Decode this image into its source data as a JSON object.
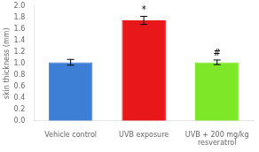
{
  "chart_data": {
    "type": "bar",
    "categories": [
      "Vehicle control",
      "UVB exposure",
      "UVB + 200 mg/kg\nresveratrol"
    ],
    "values": [
      1.02,
      1.75,
      1.02
    ],
    "errors": [
      0.05,
      0.07,
      0.04
    ],
    "colors": [
      "#3c7fd4",
      "#e8181a",
      "#7ee828"
    ],
    "annotations": [
      null,
      "*",
      "#"
    ],
    "ylabel": "skin thickness (mm)",
    "ylim": [
      0,
      2.0
    ],
    "yticks": [
      {
        "value": 0,
        "label": "0.0"
      },
      0.2,
      0.4,
      0.6,
      0.8,
      {
        "value": 1.0,
        "label": "1.0"
      },
      1.2,
      1.4,
      1.6,
      1.8,
      {
        "value": 2.0,
        "label": "2.0"
      }
    ],
    "grid": false
  }
}
